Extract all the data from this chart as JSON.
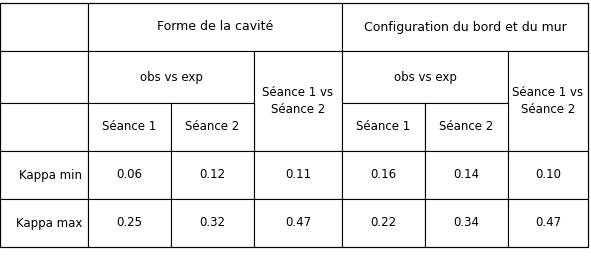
{
  "header1": [
    "Forme de la cavité",
    "Configuration du bord et du mur"
  ],
  "header2_left": "obs vs exp",
  "header2_mid": "Séance 1 vs\nSéance 2",
  "header2_right": "obs vs exp",
  "header2_far": "Séance 1 vs\nSéance 2",
  "header3": [
    "Séance 1",
    "Séance 2",
    "Séance 2",
    "Séance 1",
    "Séance 2",
    "Séance 2"
  ],
  "row_labels": [
    "Kappa min",
    "Kappa max"
  ],
  "data": [
    [
      "0.06",
      "0.12",
      "0.11",
      "0.16",
      "0.14",
      "0.10"
    ],
    [
      "0.25",
      "0.32",
      "0.47",
      "0.22",
      "0.34",
      "0.47"
    ]
  ],
  "bg_color": "#ffffff",
  "border_color": "#000000",
  "font_color": "#000000",
  "font_size": 8.5,
  "fig_width": 5.91,
  "fig_height": 2.7,
  "dpi": 100
}
